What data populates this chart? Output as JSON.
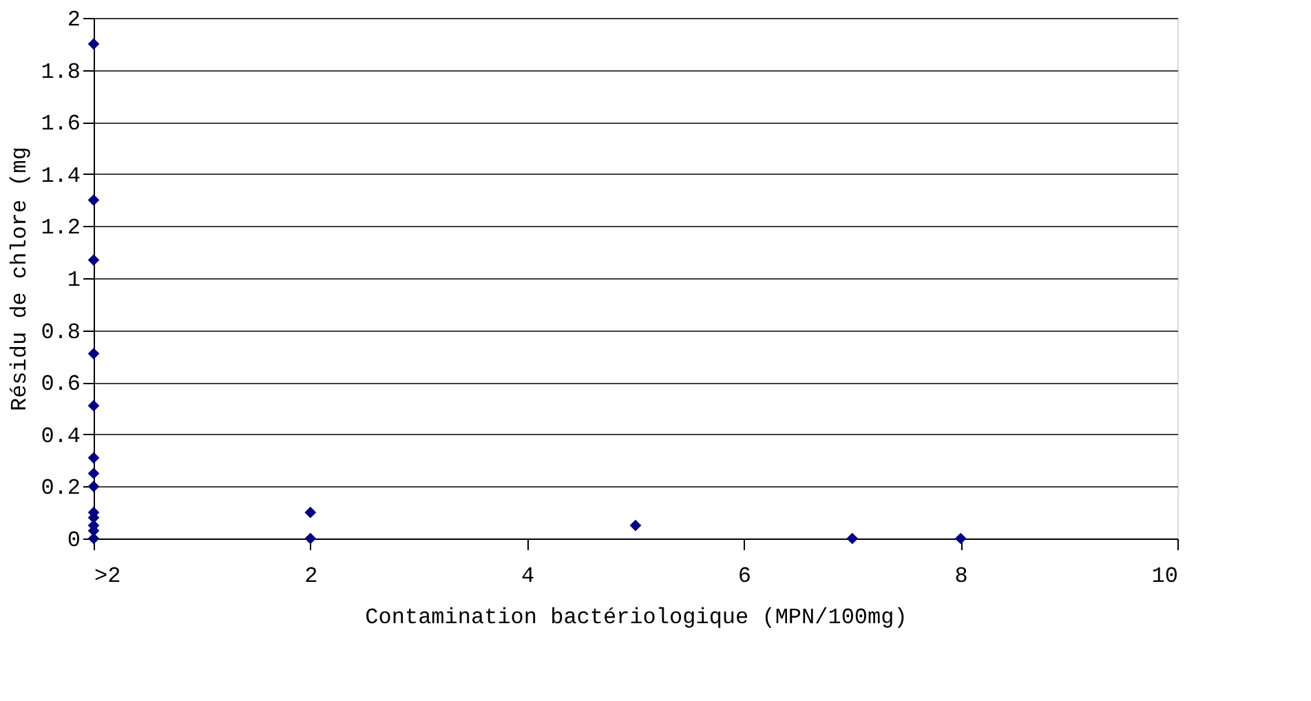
{
  "chart_data": {
    "type": "scatter",
    "xlabel": "Contamination bactériologique (MPN/100mg)",
    "ylabel": "Résidu de chlore (mg",
    "x": [
      0,
      0,
      0,
      0,
      0,
      0,
      0,
      0,
      0,
      0,
      0,
      0,
      0,
      2,
      2,
      5,
      7,
      8
    ],
    "series": [
      {
        "color": "#000080",
        "values": [
          1.9,
          1.3,
          1.07,
          0.71,
          0.51,
          0.31,
          0.25,
          0.2,
          0.1,
          0.08,
          0.05,
          0.03,
          0,
          0.1,
          0,
          0.05,
          0,
          0
        ]
      }
    ],
    "xlim": [
      0,
      10
    ],
    "xticks": [
      {
        "value": 0,
        "label": ">2"
      },
      2,
      4,
      6,
      8,
      10
    ],
    "ylim": [
      0,
      2
    ],
    "yticks": [
      0,
      0.2,
      0.4,
      0.6,
      0.8,
      1,
      1.2,
      1.4,
      1.6,
      1.8,
      2
    ],
    "grid": "y",
    "marker": "diamond"
  }
}
